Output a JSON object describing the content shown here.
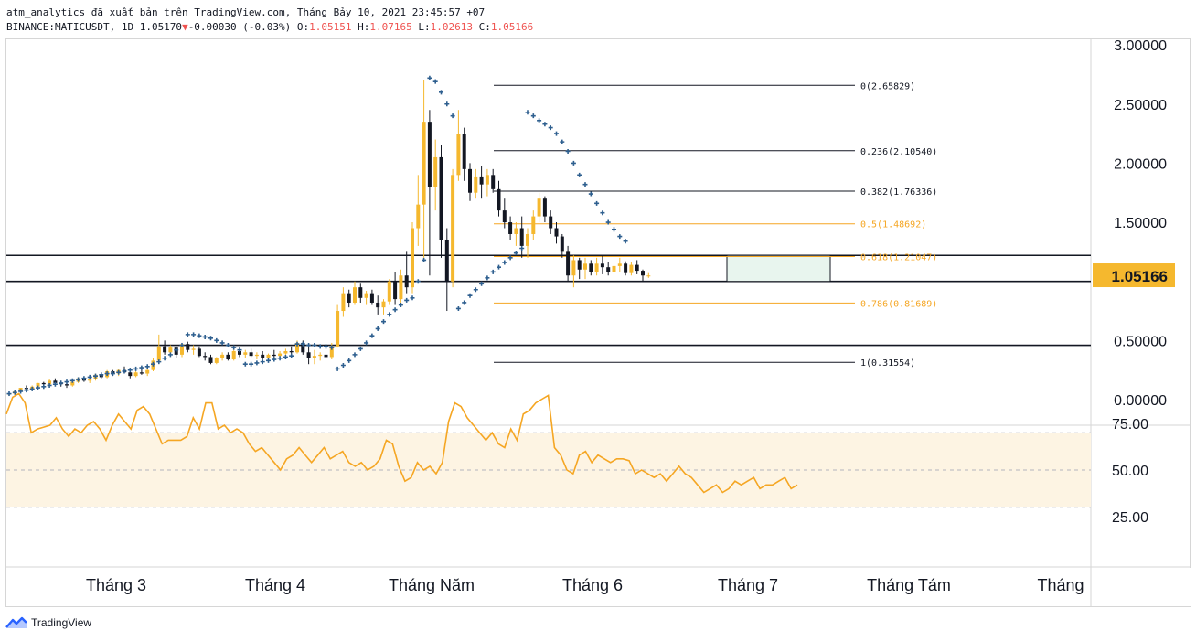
{
  "header": {
    "line1": "atm_analytics đã xuất bản trên TradingView.com, Tháng Bảy 10, 2021 23:45:57 +07",
    "symbol": "BINANCE:MATICUSDT, 1D 1.05170",
    "change": "-0.00030 (-0.03%)",
    "o_label": "O:",
    "o_value": "1.05151",
    "h_label": "H:",
    "h_value": "1.07165",
    "l_label": "L:",
    "l_value": "1.02613",
    "c_label": "C:",
    "c_value": "1.05166"
  },
  "footer": {
    "brand": "TradingView"
  },
  "colors": {
    "up": "#f5b82e",
    "down": "#131722",
    "sar": "#2e5f8f",
    "rsi": "#f5a623",
    "fib_orange": "#f5a623"
  },
  "chart_data": [
    {
      "type": "candlestick",
      "price_axis_labels": [
        "3.00000",
        "2.50000",
        "2.00000",
        "1.50000",
        "0.50000",
        "0.00000"
      ],
      "price_axis_ticks": [
        3.0,
        2.5,
        2.0,
        1.5,
        0.5,
        0.0
      ],
      "last_price_label": "1.05166",
      "ylim": [
        -0.1,
        3.1
      ],
      "x_labels": [
        "Tháng 3",
        "Tháng 4",
        "Tháng Năm",
        "Tháng 6",
        "Tháng 7",
        "Tháng Tám",
        "Tháng"
      ],
      "fib_levels": [
        {
          "label": "0(2.65829)",
          "value": 2.65829,
          "color": "#131722"
        },
        {
          "label": "0.236(2.10540)",
          "value": 2.1054,
          "color": "#131722"
        },
        {
          "label": "0.382(1.76336)",
          "value": 1.76336,
          "color": "#131722"
        },
        {
          "label": "0.5(1.48692)",
          "value": 1.48692,
          "color": "#f5a623"
        },
        {
          "label": "0.618(1.21047)",
          "value": 1.21047,
          "color": "#f5a623"
        },
        {
          "label": "0.786(0.81689)",
          "value": 0.81689,
          "color": "#f5a623"
        },
        {
          "label": "1(0.31554)",
          "value": 0.31554,
          "color": "#131722"
        }
      ],
      "horizontal_lines": [
        1.22,
        1.0,
        0.46
      ],
      "candles": [
        [
          0.05,
          0.06,
          0.03,
          0.05
        ],
        [
          0.05,
          0.08,
          0.04,
          0.07
        ],
        [
          0.07,
          0.1,
          0.06,
          0.1
        ],
        [
          0.1,
          0.12,
          0.08,
          0.09
        ],
        [
          0.09,
          0.12,
          0.08,
          0.11
        ],
        [
          0.11,
          0.14,
          0.1,
          0.14
        ],
        [
          0.14,
          0.15,
          0.12,
          0.13
        ],
        [
          0.13,
          0.17,
          0.12,
          0.16
        ],
        [
          0.16,
          0.18,
          0.13,
          0.14
        ],
        [
          0.14,
          0.16,
          0.11,
          0.13
        ],
        [
          0.13,
          0.15,
          0.1,
          0.12
        ],
        [
          0.12,
          0.16,
          0.11,
          0.15
        ],
        [
          0.15,
          0.19,
          0.14,
          0.18
        ],
        [
          0.18,
          0.19,
          0.15,
          0.16
        ],
        [
          0.16,
          0.18,
          0.14,
          0.17
        ],
        [
          0.17,
          0.22,
          0.16,
          0.21
        ],
        [
          0.21,
          0.23,
          0.18,
          0.19
        ],
        [
          0.19,
          0.25,
          0.18,
          0.24
        ],
        [
          0.24,
          0.25,
          0.2,
          0.22
        ],
        [
          0.22,
          0.26,
          0.2,
          0.25
        ],
        [
          0.25,
          0.28,
          0.22,
          0.23
        ],
        [
          0.23,
          0.24,
          0.18,
          0.2
        ],
        [
          0.2,
          0.24,
          0.19,
          0.23
        ],
        [
          0.23,
          0.26,
          0.21,
          0.22
        ],
        [
          0.22,
          0.26,
          0.2,
          0.25
        ],
        [
          0.25,
          0.35,
          0.24,
          0.33
        ],
        [
          0.33,
          0.55,
          0.3,
          0.45
        ],
        [
          0.45,
          0.5,
          0.38,
          0.4
        ],
        [
          0.4,
          0.46,
          0.36,
          0.44
        ],
        [
          0.44,
          0.45,
          0.35,
          0.38
        ],
        [
          0.38,
          0.48,
          0.36,
          0.47
        ],
        [
          0.47,
          0.49,
          0.4,
          0.42
        ],
        [
          0.42,
          0.46,
          0.38,
          0.43
        ],
        [
          0.43,
          0.45,
          0.36,
          0.37
        ],
        [
          0.37,
          0.4,
          0.33,
          0.36
        ],
        [
          0.36,
          0.38,
          0.3,
          0.31
        ],
        [
          0.31,
          0.36,
          0.3,
          0.35
        ],
        [
          0.35,
          0.4,
          0.33,
          0.38
        ],
        [
          0.38,
          0.4,
          0.33,
          0.34
        ],
        [
          0.34,
          0.42,
          0.33,
          0.41
        ],
        [
          0.41,
          0.44,
          0.36,
          0.38
        ],
        [
          0.38,
          0.42,
          0.35,
          0.4
        ],
        [
          0.4,
          0.43,
          0.36,
          0.37
        ],
        [
          0.37,
          0.4,
          0.34,
          0.38
        ],
        [
          0.38,
          0.41,
          0.34,
          0.35
        ],
        [
          0.35,
          0.39,
          0.33,
          0.38
        ],
        [
          0.38,
          0.42,
          0.36,
          0.37
        ],
        [
          0.37,
          0.41,
          0.35,
          0.39
        ],
        [
          0.39,
          0.43,
          0.37,
          0.41
        ],
        [
          0.41,
          0.45,
          0.38,
          0.4
        ],
        [
          0.4,
          0.5,
          0.39,
          0.48
        ],
        [
          0.48,
          0.5,
          0.38,
          0.4
        ],
        [
          0.4,
          0.45,
          0.3,
          0.35
        ],
        [
          0.35,
          0.42,
          0.3,
          0.37
        ],
        [
          0.37,
          0.4,
          0.33,
          0.38
        ],
        [
          0.38,
          0.45,
          0.35,
          0.36
        ],
        [
          0.36,
          0.48,
          0.34,
          0.45
        ],
        [
          0.45,
          0.8,
          0.44,
          0.75
        ],
        [
          0.75,
          0.95,
          0.7,
          0.9
        ],
        [
          0.9,
          0.93,
          0.78,
          0.82
        ],
        [
          0.82,
          1.0,
          0.8,
          0.95
        ],
        [
          0.95,
          0.98,
          0.82,
          0.86
        ],
        [
          0.86,
          0.92,
          0.8,
          0.9
        ],
        [
          0.9,
          0.93,
          0.8,
          0.82
        ],
        [
          0.82,
          0.88,
          0.72,
          0.78
        ],
        [
          0.78,
          0.85,
          0.72,
          0.83
        ],
        [
          0.83,
          1.02,
          0.8,
          1.0
        ],
        [
          1.0,
          1.08,
          0.8,
          0.85
        ],
        [
          0.85,
          1.1,
          0.82,
          1.05
        ],
        [
          1.05,
          1.25,
          0.9,
          0.95
        ],
        [
          0.95,
          1.5,
          0.9,
          1.45
        ],
        [
          1.45,
          1.9,
          1.3,
          1.65
        ],
        [
          1.65,
          2.7,
          1.2,
          2.35
        ],
        [
          2.35,
          2.45,
          1.05,
          1.8
        ],
        [
          1.8,
          2.2,
          1.6,
          2.05
        ],
        [
          2.05,
          2.15,
          1.2,
          1.35
        ],
        [
          1.35,
          1.45,
          0.75,
          1.0
        ],
        [
          1.0,
          1.95,
          0.95,
          1.9
        ],
        [
          1.9,
          2.45,
          1.85,
          2.25
        ],
        [
          2.25,
          2.3,
          1.85,
          1.95
        ],
        [
          1.95,
          2.0,
          1.68,
          1.75
        ],
        [
          1.75,
          1.95,
          1.7,
          1.88
        ],
        [
          1.88,
          1.98,
          1.7,
          1.82
        ],
        [
          1.82,
          1.95,
          1.72,
          1.9
        ],
        [
          1.9,
          1.95,
          1.75,
          1.78
        ],
        [
          1.78,
          1.85,
          1.55,
          1.6
        ],
        [
          1.6,
          1.7,
          1.45,
          1.5
        ],
        [
          1.5,
          1.55,
          1.35,
          1.4
        ],
        [
          1.4,
          1.5,
          1.3,
          1.45
        ],
        [
          1.45,
          1.55,
          1.2,
          1.3
        ],
        [
          1.3,
          1.45,
          1.2,
          1.4
        ],
        [
          1.4,
          1.6,
          1.35,
          1.55
        ],
        [
          1.55,
          1.75,
          1.5,
          1.7
        ],
        [
          1.7,
          1.72,
          1.5,
          1.55
        ],
        [
          1.55,
          1.6,
          1.4,
          1.45
        ],
        [
          1.45,
          1.5,
          1.32,
          1.38
        ],
        [
          1.38,
          1.4,
          1.2,
          1.25
        ],
        [
          1.25,
          1.3,
          1.0,
          1.05
        ],
        [
          1.05,
          1.22,
          0.95,
          1.18
        ],
        [
          1.18,
          1.2,
          1.02,
          1.1
        ],
        [
          1.1,
          1.2,
          1.02,
          1.15
        ],
        [
          1.15,
          1.18,
          1.05,
          1.08
        ],
        [
          1.08,
          1.2,
          1.05,
          1.15
        ],
        [
          1.15,
          1.22,
          1.06,
          1.12
        ],
        [
          1.12,
          1.16,
          1.05,
          1.08
        ],
        [
          1.08,
          1.15,
          1.04,
          1.13
        ],
        [
          1.13,
          1.2,
          1.08,
          1.15
        ],
        [
          1.15,
          1.17,
          1.05,
          1.07
        ],
        [
          1.07,
          1.16,
          1.05,
          1.14
        ],
        [
          1.14,
          1.18,
          1.06,
          1.09
        ],
        [
          1.09,
          1.1,
          1.0,
          1.05
        ],
        [
          1.05,
          1.07,
          1.03,
          1.05
        ]
      ],
      "sar": [
        0.05,
        0.06,
        0.07,
        0.08,
        0.09,
        0.1,
        0.11,
        0.12,
        0.13,
        0.14,
        0.15,
        0.16,
        0.17,
        0.18,
        0.19,
        0.2,
        0.21,
        0.22,
        0.22,
        0.23,
        0.24,
        0.25,
        0.26,
        0.27,
        0.28,
        0.3,
        0.32,
        0.35,
        0.38,
        0.42,
        0.46,
        0.55,
        0.55,
        0.54,
        0.53,
        0.52,
        0.5,
        0.48,
        0.46,
        0.44,
        0.42,
        0.3,
        0.3,
        0.31,
        0.32,
        0.33,
        0.34,
        0.35,
        0.36,
        0.37,
        0.47,
        0.47,
        0.46,
        0.46,
        0.45,
        0.45,
        0.44,
        0.26,
        0.29,
        0.33,
        0.38,
        0.43,
        0.48,
        0.54,
        0.6,
        0.66,
        0.72,
        0.76,
        0.8,
        0.84,
        0.86,
        1.0,
        1.18,
        2.72,
        2.69,
        2.6,
        2.5,
        2.4,
        0.77,
        0.82,
        0.88,
        0.93,
        0.98,
        1.03,
        1.08,
        1.12,
        1.16,
        1.2,
        1.24,
        1.28,
        2.43,
        2.4,
        2.36,
        2.33,
        2.3,
        2.25,
        2.18,
        2.1,
        2.0,
        1.9,
        1.82,
        1.74,
        1.66,
        1.58,
        1.5,
        1.44,
        1.38,
        1.34
      ]
    },
    {
      "type": "line",
      "name": "",
      "axis_labels": [
        "75.00",
        "50.00",
        "25.00"
      ],
      "axis_ticks": [
        75,
        50,
        25
      ],
      "band": [
        30,
        70
      ],
      "ylim": [
        22,
        96
      ],
      "values": [
        80,
        89,
        91,
        86,
        70,
        72,
        73,
        74,
        78,
        72,
        68,
        72,
        70,
        74,
        76,
        72,
        66,
        74,
        80,
        76,
        72,
        82,
        84,
        80,
        72,
        64,
        66,
        66,
        66,
        68,
        78,
        72,
        86,
        86,
        72,
        74,
        70,
        72,
        70,
        64,
        60,
        62,
        58,
        54,
        50,
        56,
        58,
        62,
        58,
        54,
        58,
        62,
        56,
        58,
        60,
        54,
        52,
        54,
        50,
        52,
        56,
        66,
        64,
        52,
        44,
        46,
        54,
        50,
        52,
        48,
        54,
        76,
        86,
        84,
        78,
        74,
        70,
        66,
        70,
        64,
        62,
        72,
        66,
        80,
        82,
        86,
        88,
        90,
        62,
        58,
        50,
        48,
        58,
        60,
        54,
        58,
        56,
        54,
        56,
        56,
        55,
        48,
        50,
        48,
        46,
        48,
        44,
        48,
        52,
        48,
        46,
        42,
        38,
        40,
        42,
        38,
        40,
        44,
        42,
        44,
        46,
        40,
        42,
        42,
        44,
        46,
        40,
        42
      ]
    }
  ]
}
